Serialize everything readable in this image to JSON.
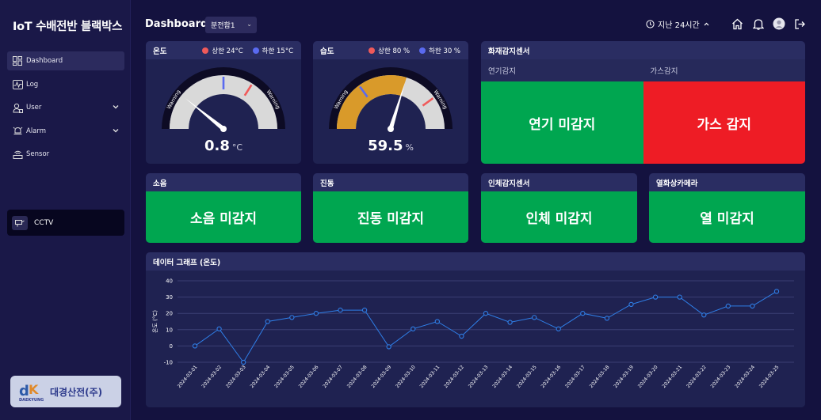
{
  "app": {
    "title": "IoT 수배전반 블랙박스"
  },
  "sidebar": {
    "items": [
      {
        "label": "Dashboard",
        "icon": "dashboard-icon",
        "active": true
      },
      {
        "label": "Log",
        "icon": "pulse-icon"
      },
      {
        "label": "User",
        "icon": "users-icon",
        "expandable": true
      },
      {
        "label": "Alarm",
        "icon": "alarm-icon",
        "expandable": true
      },
      {
        "label": "Sensor",
        "icon": "sensor-icon"
      }
    ],
    "cctv_label": "CCTV",
    "logo_text": "대경산전(주)",
    "logo_brand": "DAEKYUNG"
  },
  "header": {
    "title": "Dashboard",
    "select_value": "분전함1",
    "time_range": "지난 24시간"
  },
  "temperature": {
    "title": "온도",
    "upper_label": "상한 24°C",
    "lower_label": "하한 15°C",
    "value": "0.8",
    "unit": "°C",
    "value_num": 0.8,
    "min": -10,
    "max": 40,
    "upper": 24,
    "lower": 15,
    "warning_text": "Warning"
  },
  "humidity": {
    "title": "습도",
    "upper_label": "상한 80 %",
    "lower_label": "하한 30 %",
    "value": "59.5",
    "unit": "%",
    "value_num": 59.5,
    "min": 0,
    "max": 100,
    "upper": 80,
    "lower": 30,
    "warning_text": "Warning"
  },
  "fire": {
    "title": "화재감지센서",
    "smoke_label": "연기감지",
    "gas_label": "가스감지",
    "smoke_status": "연기 미감지",
    "gas_status": "가스 감지"
  },
  "sensors": {
    "noise": {
      "title": "소음",
      "status": "소음 미감지"
    },
    "vibration": {
      "title": "진동",
      "status": "진동 미감지"
    },
    "human": {
      "title": "인체감지센서",
      "status": "인체 미감지"
    },
    "thermal": {
      "title": "열화상카메라",
      "status": "열 미감지"
    }
  },
  "colors": {
    "ok": "#00a650",
    "alert": "#ee1c25",
    "upper": "#f05a5a",
    "lower": "#5a6af0",
    "line": "#2f7fe8"
  },
  "chart": {
    "title": "데이터 그래프 (온도)"
  },
  "chart_data": {
    "type": "line",
    "title": "데이터 그래프 (온도)",
    "ylabel": "온도 (°C)",
    "xlabel": "",
    "ylim": [
      -10,
      40
    ],
    "yticks": [
      -10,
      0,
      10,
      20,
      30,
      40
    ],
    "grid": true,
    "x": [
      "2024-03-01",
      "2024-03-02",
      "2024-03-03",
      "2024-03-04",
      "2024-03-05",
      "2024-03-06",
      "2024-03-07",
      "2024-03-08",
      "2024-03-09",
      "2024-03-10",
      "2024-03-11",
      "2024-03-12",
      "2024-03-13",
      "2024-03-14",
      "2024-03-15",
      "2024-03-16",
      "2024-03-17",
      "2024-03-18",
      "2024-03-19",
      "2024-03-20",
      "2024-03-21",
      "2024-03-22",
      "2024-03-23",
      "2024-03-24",
      "2024-03-25"
    ],
    "series": [
      {
        "values": [
          0,
          10.5,
          -10,
          15,
          17.5,
          20,
          22,
          22,
          -0.5,
          10.5,
          15,
          6,
          20,
          14.5,
          17.5,
          10.5,
          20,
          17,
          25.5,
          30,
          30,
          19,
          24.5,
          24.5,
          33.5
        ]
      }
    ]
  }
}
